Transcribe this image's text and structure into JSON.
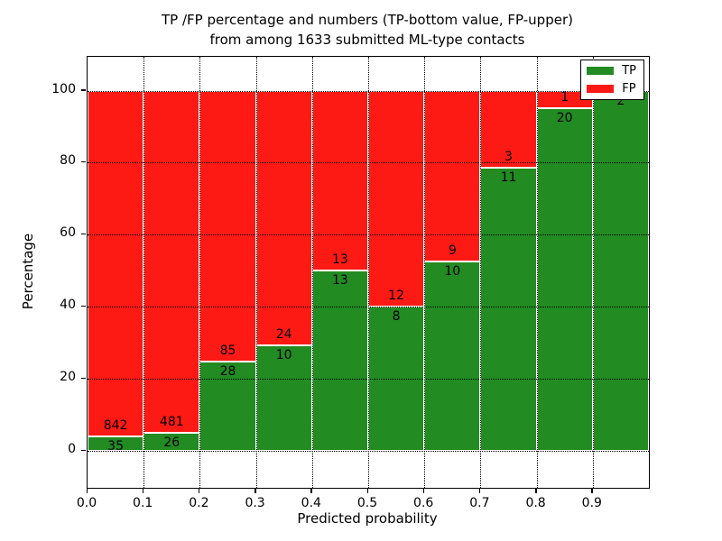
{
  "chart_data": {
    "type": "bar",
    "stacked": true,
    "normalized_to_percent": true,
    "title_line1": "TP /FP percentage and numbers (TP-bottom value, FP-upper)",
    "title_line2": "from among 1633 submitted ML-type contacts",
    "xlabel": "Predicted probability",
    "ylabel": "Percentage",
    "x_tick_labels": [
      "0.0",
      "0.1",
      "0.2",
      "0.3",
      "0.4",
      "0.5",
      "0.6",
      "0.7",
      "0.8",
      "0.9"
    ],
    "y_tick_labels": [
      "0",
      "20",
      "40",
      "60",
      "80",
      "100"
    ],
    "y_ticks": [
      0,
      20,
      40,
      60,
      80,
      100
    ],
    "xlim": [
      0.0,
      1.0
    ],
    "ylim": [
      -10.3,
      109.7
    ],
    "grid": "dotted",
    "bin_start": 0.0,
    "bin_width": 0.1,
    "legend_position": "upper right",
    "series": [
      {
        "name": "TP",
        "color": "#228b22",
        "values": [
          35,
          26,
          28,
          10,
          13,
          8,
          10,
          11,
          20,
          2
        ]
      },
      {
        "name": "FP",
        "color": "#fd1a15",
        "values": [
          842,
          481,
          85,
          24,
          13,
          12,
          9,
          3,
          1,
          0
        ]
      }
    ],
    "percent_tp": [
      3.99,
      5.13,
      24.78,
      29.41,
      50.0,
      40.0,
      52.63,
      78.57,
      95.24,
      100.0
    ],
    "total_contacts": 1633
  }
}
